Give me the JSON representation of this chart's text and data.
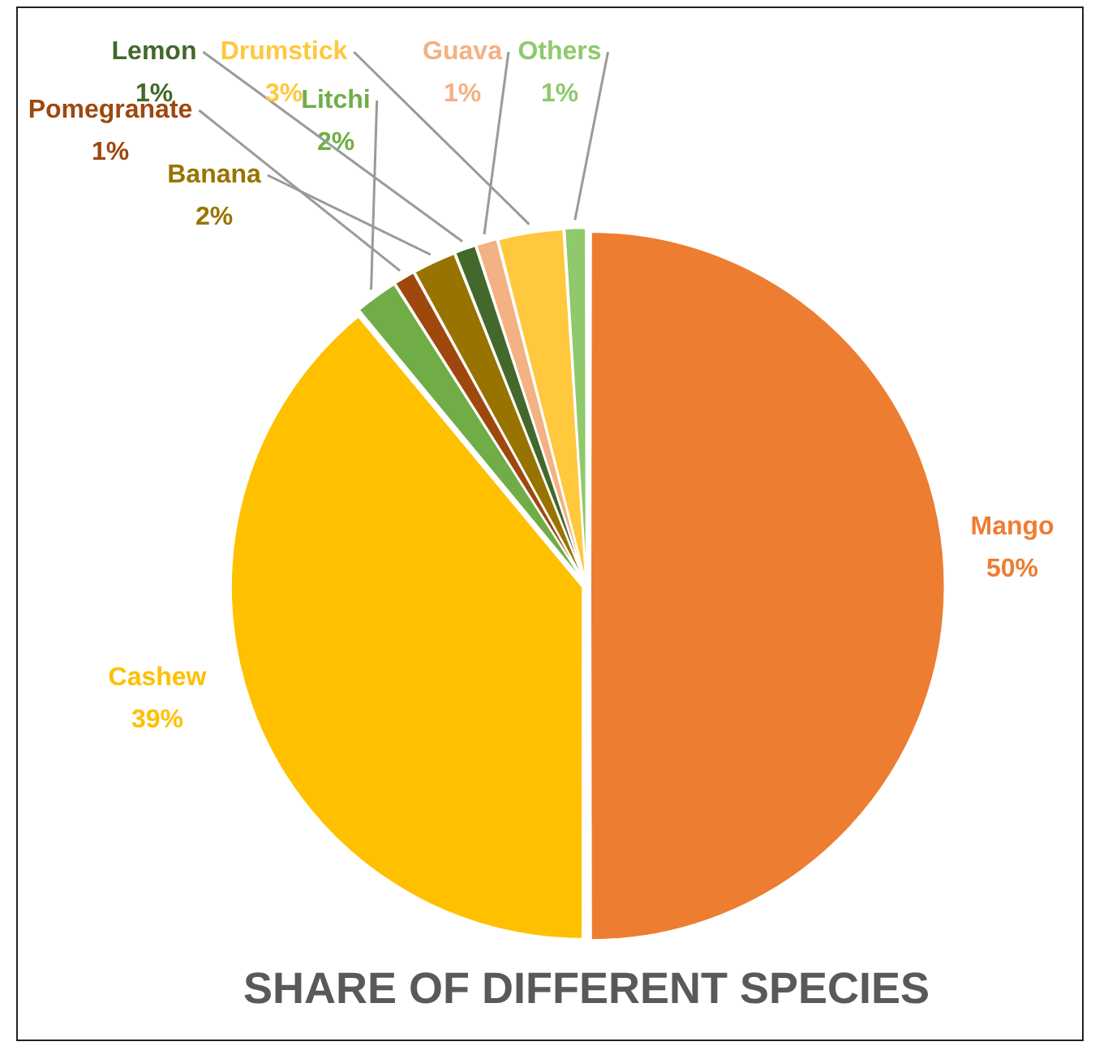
{
  "chart_data": {
    "type": "pie",
    "title": "SHARE OF DIFFERENT SPECIES",
    "categories": [
      "Mango",
      "Cashew",
      "Litchi",
      "Pomegranate",
      "Banana",
      "Lemon",
      "Guava",
      "Drumstick",
      "Others"
    ],
    "values": [
      50,
      39,
      2,
      1,
      2,
      1,
      1,
      3,
      1
    ],
    "colors": [
      "#ed7d31",
      "#ffc000",
      "#70ad47",
      "#9e480e",
      "#997300",
      "#43682b",
      "#f4b183",
      "#ffc83d",
      "#8fc96b"
    ],
    "value_labels": [
      "50%",
      "39%",
      "2%",
      "1%",
      "2%",
      "1%",
      "1%",
      "3%",
      "1%"
    ]
  }
}
